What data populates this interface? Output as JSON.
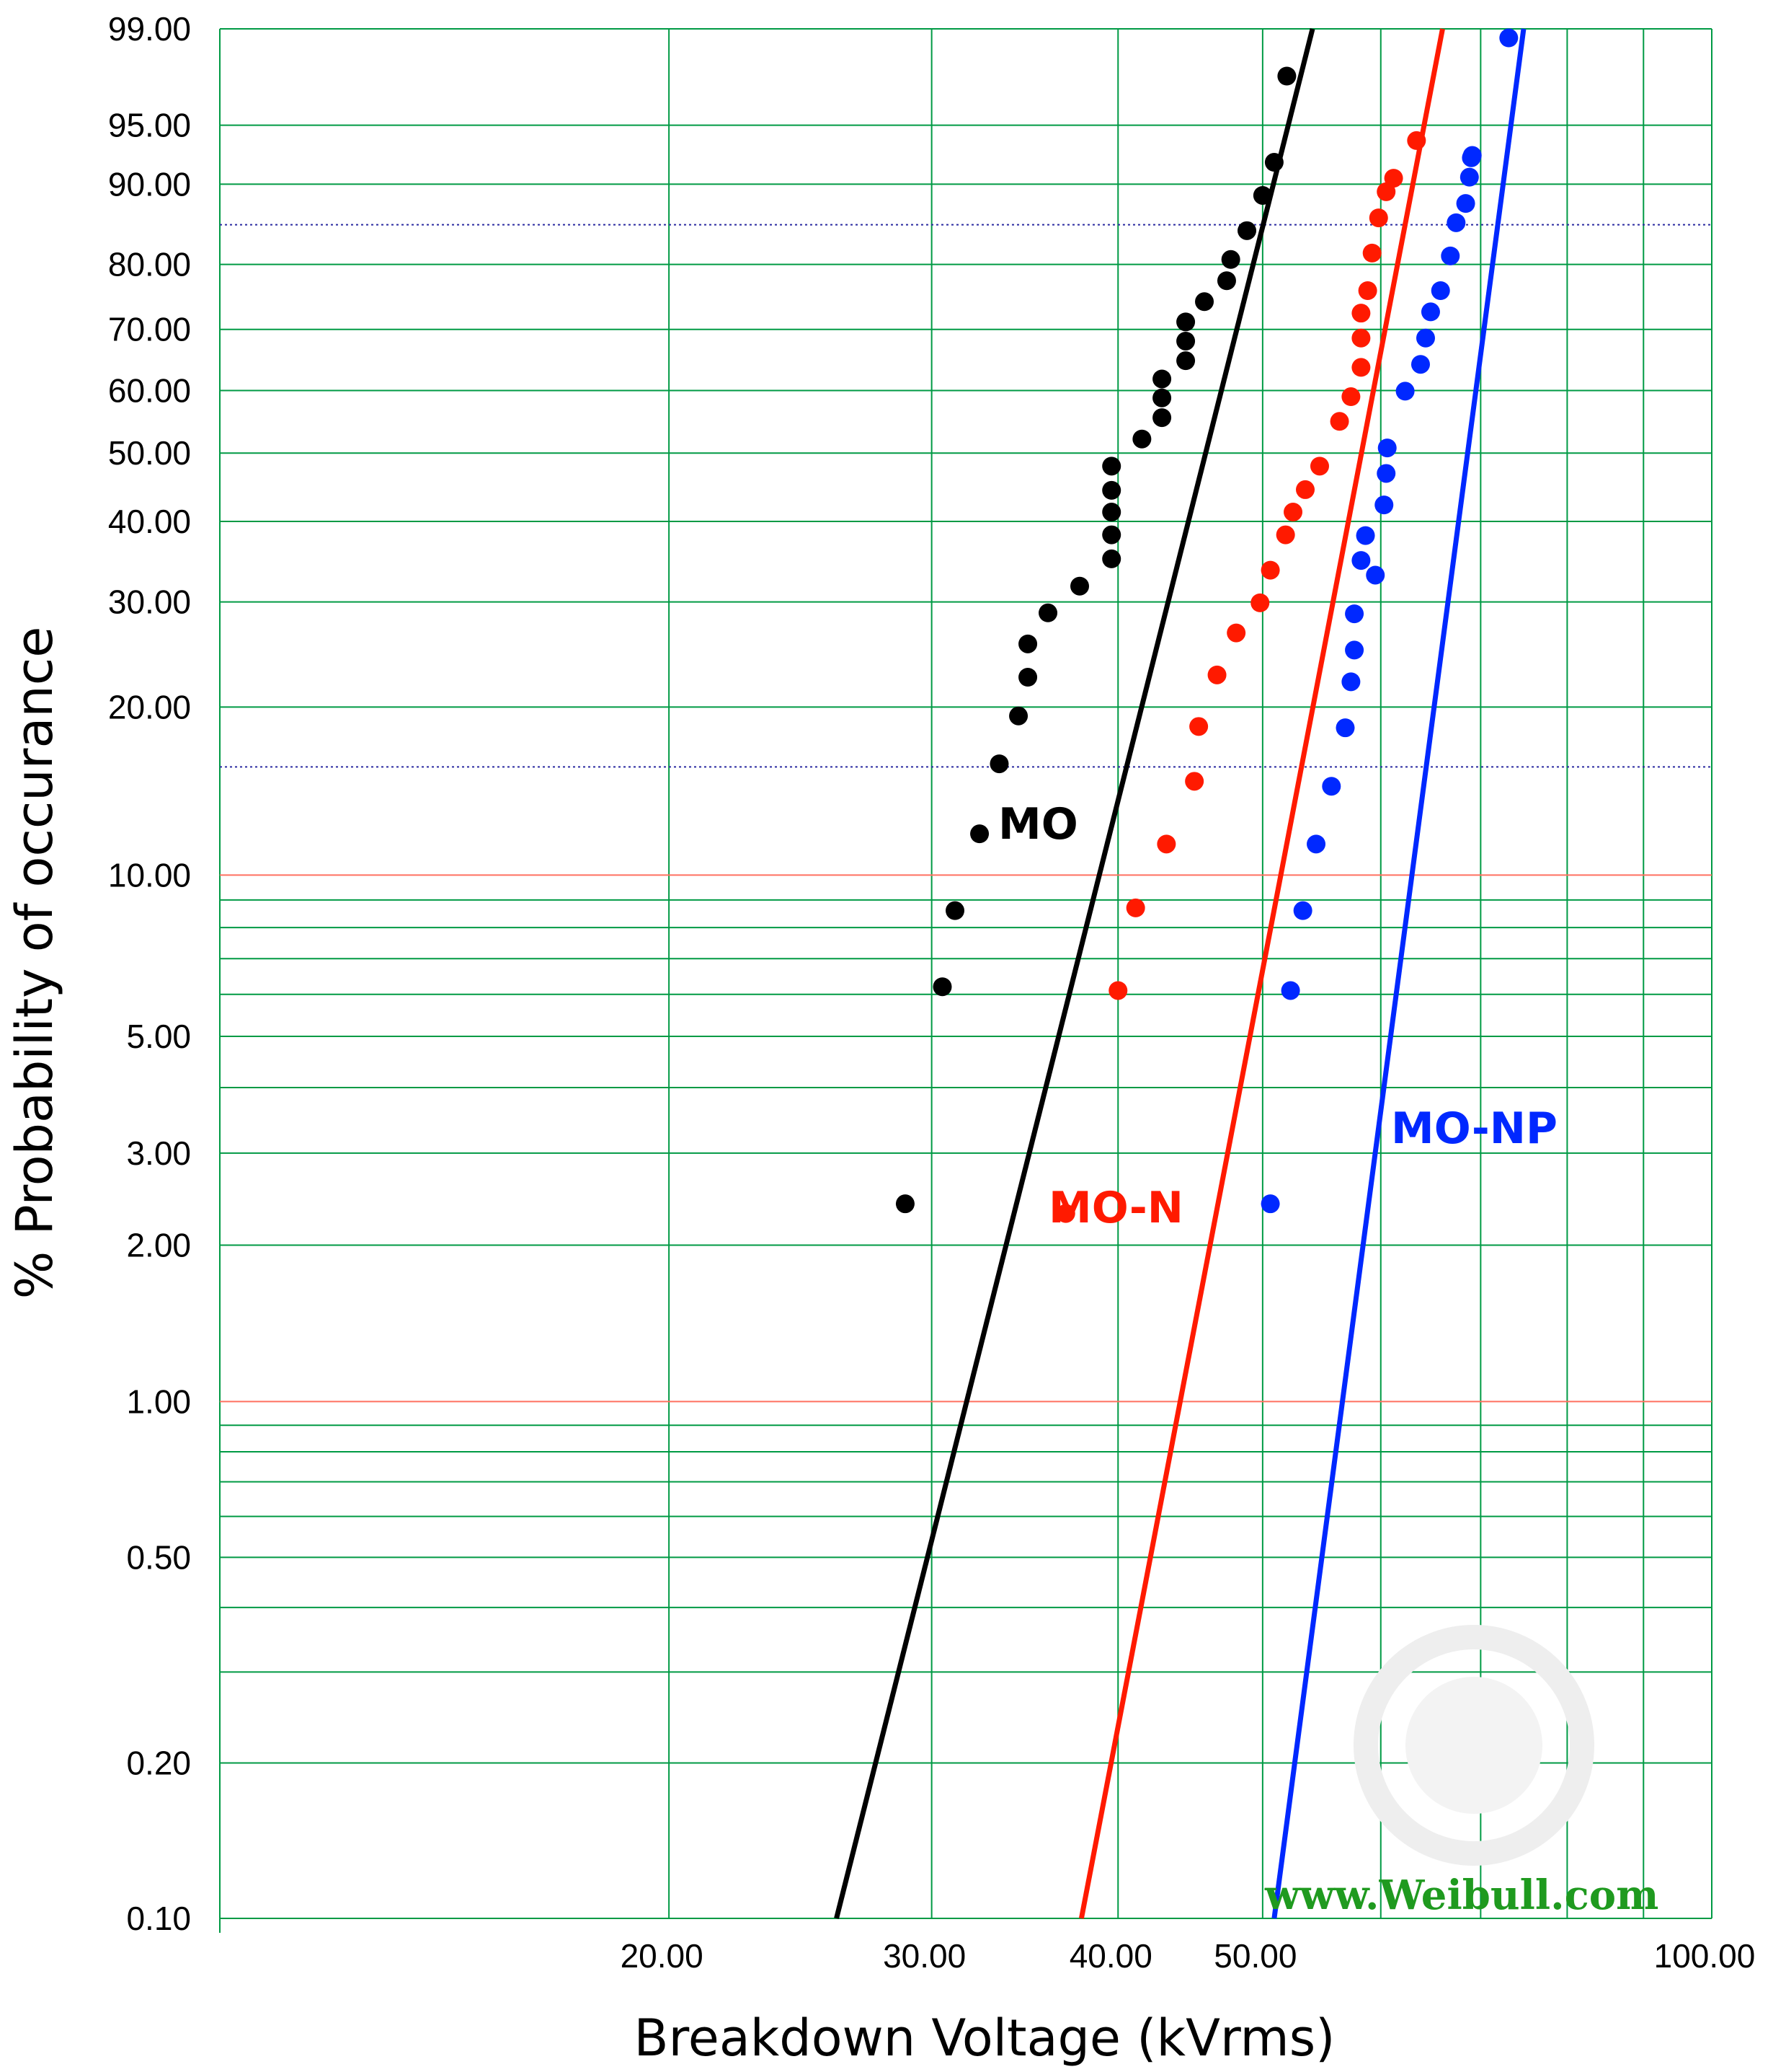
{
  "chart_data": {
    "type": "scatter",
    "title": "",
    "xlabel": "Breakdown Voltage (kVrms)",
    "ylabel": "% Probability of occurance",
    "x_scale": "log",
    "y_scale": "weibull",
    "xlim": [
      10,
      100
    ],
    "ylim": [
      0.1,
      99
    ],
    "x_ticks": [
      "20.00",
      "30.00",
      "40.00",
      "50.00",
      "100.00"
    ],
    "y_ticks": [
      "99.00",
      "95.00",
      "90.00",
      "80.00",
      "70.00",
      "60.00",
      "50.00",
      "40.00",
      "30.00",
      "20.00",
      "10.00",
      "5.00",
      "3.00",
      "2.00",
      "1.00",
      "0.50",
      "0.20",
      "0.10"
    ],
    "grid": true,
    "grid_color": "#009a44",
    "reference_line_color": "#ff7060",
    "watermark": "www.Weibull.com",
    "watermark_color": "#1f9a1f",
    "series": [
      {
        "name": "MO",
        "color": "#000000",
        "x": [
          28.8,
          30.5,
          31.1,
          32.3,
          33.3,
          34.3,
          34.8,
          34.8,
          35.9,
          37.7,
          39.6,
          39.6,
          39.6,
          39.6,
          39.6,
          41.5,
          42.8,
          42.8,
          42.8,
          44.4,
          44.4,
          44.4,
          45.7,
          47.3,
          47.6,
          48.8,
          50.0,
          50.9,
          51.9
        ],
        "y": [
          2.4,
          6.2,
          8.6,
          11.9,
          15.9,
          19.3,
          22.5,
          25.6,
          28.8,
          31.8,
          35.1,
          38.2,
          41.3,
          44.4,
          48.0,
          52.2,
          55.6,
          58.8,
          61.9,
          64.9,
          68.1,
          71.2,
          74.4,
          77.6,
          80.7,
          84.6,
          88.8,
          92.1,
          97.6
        ],
        "fit_line": {
          "x": [
            25.9,
            54.0
          ],
          "y": [
            0.1,
            99
          ]
        },
        "label_color": "#000000"
      },
      {
        "name": "MO-N",
        "color": "#ff1a00",
        "x": [
          36.9,
          40.0,
          41.1,
          43.1,
          45.0,
          45.3,
          46.6,
          48.0,
          49.8,
          50.6,
          51.8,
          52.4,
          53.4,
          54.6,
          56.3,
          57.3,
          58.2,
          58.2,
          58.2,
          58.8,
          59.2,
          59.8,
          60.5,
          61.2,
          63.4
        ],
        "y": [
          2.3,
          6.1,
          8.7,
          11.4,
          14.8,
          18.5,
          22.7,
          26.7,
          29.9,
          33.7,
          38.2,
          41.3,
          44.5,
          48.0,
          55.0,
          59.0,
          63.8,
          68.6,
          72.6,
          76.1,
          81.6,
          86.2,
          89.2,
          90.6,
          93.9
        ],
        "fit_line": {
          "x": [
            37.8,
            66.0
          ],
          "y": [
            0.1,
            99
          ]
        },
        "label_color": "#ff1a00"
      },
      {
        "name": "MO-NP",
        "color": "#0028ff",
        "x": [
          50.6,
          52.2,
          53.2,
          54.3,
          55.6,
          56.8,
          57.3,
          57.6,
          57.6,
          58.2,
          58.6,
          59.5,
          60.3,
          60.5,
          60.6,
          62.3,
          63.8,
          64.3,
          64.8,
          65.8,
          66.8,
          67.4,
          68.4,
          68.8,
          69.1,
          69.0,
          73.1
        ],
        "y": [
          2.4,
          6.1,
          8.6,
          11.4,
          14.5,
          18.4,
          22.1,
          25.0,
          28.7,
          34.9,
          38.1,
          33.1,
          42.3,
          46.9,
          50.8,
          59.9,
          64.3,
          68.6,
          72.8,
          76.1,
          81.2,
          85.6,
          87.9,
          90.7,
          92.7,
          92.5,
          98.8
        ],
        "fit_line": {
          "x": [
            50.9,
            74.8
          ],
          "y": [
            0.1,
            99
          ]
        },
        "label_color": "#0028ff"
      }
    ]
  }
}
